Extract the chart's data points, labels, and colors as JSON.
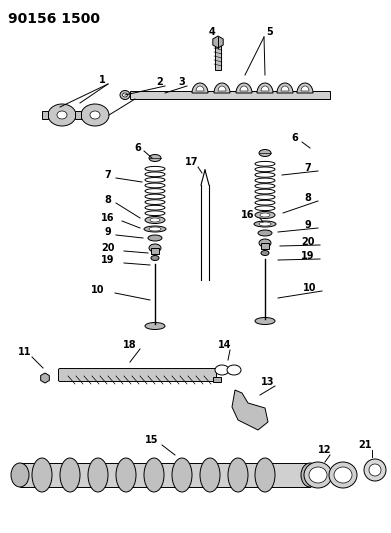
{
  "title": "90156 1500",
  "bg_color": "#ffffff",
  "line_color": "#000000",
  "title_fontsize": 10,
  "label_fontsize": 7,
  "fig_width": 3.91,
  "fig_height": 5.33,
  "dpi": 100
}
